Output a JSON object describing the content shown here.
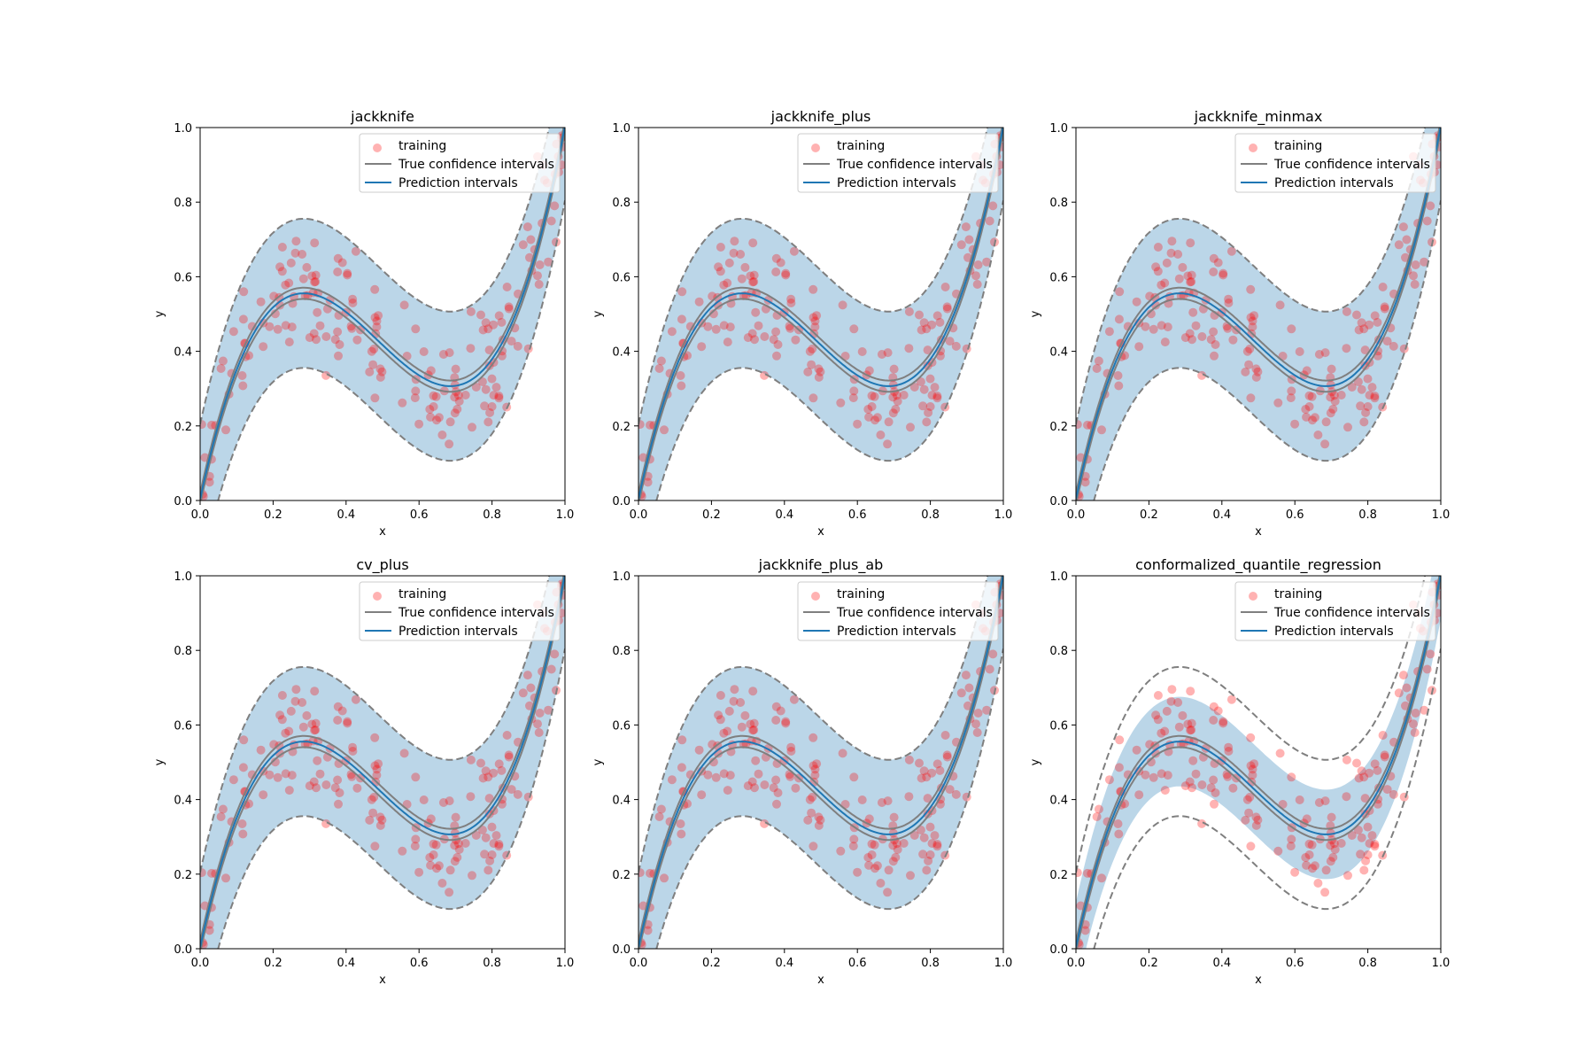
{
  "colors": {
    "training": "#ff0000",
    "true_ci": "#7f7f7f",
    "prediction": "#1f77b4",
    "band": "#1f77b4"
  },
  "chart_data": [
    {
      "type": "scatter",
      "title": "jackknife",
      "xlabel": "x",
      "ylabel": "y",
      "xlim": [
        0,
        1
      ],
      "ylim": [
        0,
        1
      ],
      "xticks": [
        "0.0",
        "0.2",
        "0.4",
        "0.6",
        "0.8",
        "1.0"
      ],
      "yticks": [
        "0.0",
        "0.2",
        "0.4",
        "0.6",
        "0.8",
        "1.0"
      ],
      "legend": [
        "training",
        "True confidence intervals",
        "Prediction intervals"
      ],
      "legend_position": "top-right",
      "series": [
        {
          "name": "training"
        },
        {
          "name": "True confidence intervals"
        },
        {
          "name": "Prediction intervals"
        }
      ],
      "band_halfwidth": 0.2
    },
    {
      "type": "scatter",
      "title": "jackknife_plus",
      "xlabel": "x",
      "ylabel": "y",
      "xlim": [
        0,
        1
      ],
      "ylim": [
        0,
        1
      ],
      "xticks": [
        "0.0",
        "0.2",
        "0.4",
        "0.6",
        "0.8",
        "1.0"
      ],
      "yticks": [
        "0.0",
        "0.2",
        "0.4",
        "0.6",
        "0.8",
        "1.0"
      ],
      "legend": [
        "training",
        "True confidence intervals",
        "Prediction intervals"
      ],
      "legend_position": "top-right",
      "series": [
        {
          "name": "training"
        },
        {
          "name": "True confidence intervals"
        },
        {
          "name": "Prediction intervals"
        }
      ],
      "band_halfwidth": 0.2
    },
    {
      "type": "scatter",
      "title": "jackknife_minmax",
      "xlabel": "x",
      "ylabel": "y",
      "xlim": [
        0,
        1
      ],
      "ylim": [
        0,
        1
      ],
      "xticks": [
        "0.0",
        "0.2",
        "0.4",
        "0.6",
        "0.8",
        "1.0"
      ],
      "yticks": [
        "0.0",
        "0.2",
        "0.4",
        "0.6",
        "0.8",
        "1.0"
      ],
      "legend": [
        "training",
        "True confidence intervals",
        "Prediction intervals"
      ],
      "legend_position": "top-right",
      "series": [
        {
          "name": "training"
        },
        {
          "name": "True confidence intervals"
        },
        {
          "name": "Prediction intervals"
        }
      ],
      "band_halfwidth": 0.2
    },
    {
      "type": "scatter",
      "title": "cv_plus",
      "xlabel": "x",
      "ylabel": "y",
      "xlim": [
        0,
        1
      ],
      "ylim": [
        0,
        1
      ],
      "xticks": [
        "0.0",
        "0.2",
        "0.4",
        "0.6",
        "0.8",
        "1.0"
      ],
      "yticks": [
        "0.0",
        "0.2",
        "0.4",
        "0.6",
        "0.8",
        "1.0"
      ],
      "legend": [
        "training",
        "True confidence intervals",
        "Prediction intervals"
      ],
      "legend_position": "top-right",
      "series": [
        {
          "name": "training"
        },
        {
          "name": "True confidence intervals"
        },
        {
          "name": "Prediction intervals"
        }
      ],
      "band_halfwidth": 0.2
    },
    {
      "type": "scatter",
      "title": "jackknife_plus_ab",
      "xlabel": "x",
      "ylabel": "y",
      "xlim": [
        0,
        1
      ],
      "ylim": [
        0,
        1
      ],
      "xticks": [
        "0.0",
        "0.2",
        "0.4",
        "0.6",
        "0.8",
        "1.0"
      ],
      "yticks": [
        "0.0",
        "0.2",
        "0.4",
        "0.6",
        "0.8",
        "1.0"
      ],
      "legend": [
        "training",
        "True confidence intervals",
        "Prediction intervals"
      ],
      "legend_position": "top-right",
      "series": [
        {
          "name": "training"
        },
        {
          "name": "True confidence intervals"
        },
        {
          "name": "Prediction intervals"
        }
      ],
      "band_halfwidth": 0.2
    },
    {
      "type": "scatter",
      "title": "conformalized_quantile_regression",
      "xlabel": "x",
      "ylabel": "y",
      "xlim": [
        0,
        1
      ],
      "ylim": [
        0,
        1
      ],
      "xticks": [
        "0.0",
        "0.2",
        "0.4",
        "0.6",
        "0.8",
        "1.0"
      ],
      "yticks": [
        "0.0",
        "0.2",
        "0.4",
        "0.6",
        "0.8",
        "1.0"
      ],
      "legend": [
        "training",
        "True confidence intervals",
        "Prediction intervals"
      ],
      "legend_position": "top-right",
      "series": [
        {
          "name": "training"
        },
        {
          "name": "True confidence intervals"
        },
        {
          "name": "Prediction intervals"
        }
      ],
      "band_halfwidth": 0.12
    }
  ]
}
